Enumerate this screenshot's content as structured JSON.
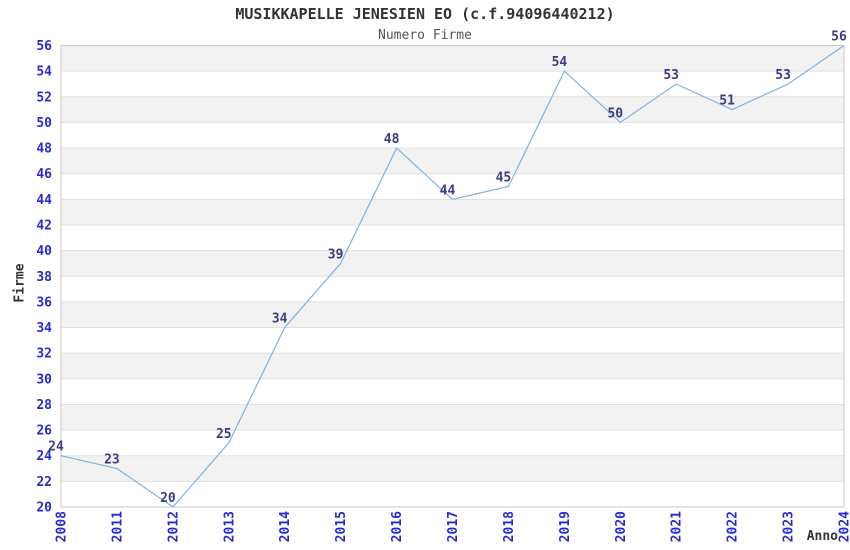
{
  "chart_data": {
    "type": "line",
    "title": "MUSIKKAPELLE JENESIEN EO (c.f.94096440212)",
    "subtitle": "Numero Firme",
    "xlabel": "Anno",
    "ylabel": "Firme",
    "x": [
      "2008",
      "2011",
      "2012",
      "2013",
      "2014",
      "2015",
      "2016",
      "2017",
      "2018",
      "2019",
      "2020",
      "2021",
      "2022",
      "2023",
      "2024"
    ],
    "values": [
      24,
      23,
      20,
      25,
      34,
      39,
      48,
      44,
      45,
      54,
      50,
      53,
      51,
      53,
      56
    ],
    "ylim": [
      20,
      56
    ],
    "ytick_step": 2,
    "yticks": [
      20,
      22,
      24,
      26,
      28,
      30,
      32,
      34,
      36,
      38,
      40,
      42,
      44,
      46,
      48,
      50,
      52,
      54,
      56
    ],
    "grid": "horizontal-bands-alternating",
    "legend": "none",
    "colors": {
      "line": "#7fb2e3",
      "tick_label": "#2a2ad2",
      "data_label": "#3c3c85",
      "title": "#333333",
      "subtitle": "#555555",
      "band": "#f2f2f2",
      "gridline": "#e0e0e0",
      "border": "#c9c9c9",
      "axis_label": "#333333",
      "background": "#ffffff"
    }
  }
}
